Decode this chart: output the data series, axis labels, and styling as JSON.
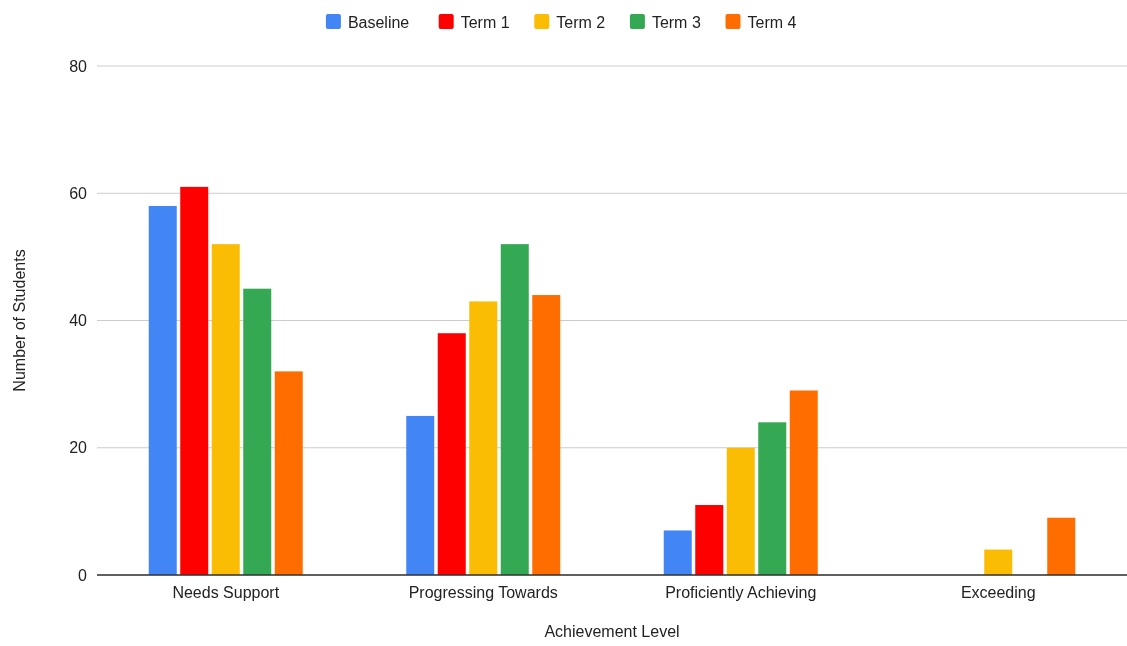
{
  "chart_data": {
    "type": "bar",
    "xlabel": "Achievement Level",
    "ylabel": "Number of Students",
    "categories": [
      "Needs Support",
      "Progressing Towards",
      "Proficiently Achieving",
      "Exceeding"
    ],
    "series": [
      {
        "name": "Baseline",
        "color": "#4285f4",
        "values": [
          58,
          25,
          7,
          0
        ]
      },
      {
        "name": "Term 1",
        "color": "#ff0000",
        "values": [
          61,
          38,
          11,
          0
        ]
      },
      {
        "name": "Term 2",
        "color": "#fbbc04",
        "values": [
          52,
          43,
          20,
          4
        ]
      },
      {
        "name": "Term 3",
        "color": "#34a853",
        "values": [
          45,
          52,
          24,
          0
        ]
      },
      {
        "name": "Term 4",
        "color": "#ff6d01",
        "values": [
          32,
          44,
          29,
          9
        ]
      }
    ],
    "ylim": [
      0,
      80
    ],
    "yticks": [
      0,
      20,
      40,
      60,
      80
    ],
    "grid": "y",
    "legend": "top"
  }
}
